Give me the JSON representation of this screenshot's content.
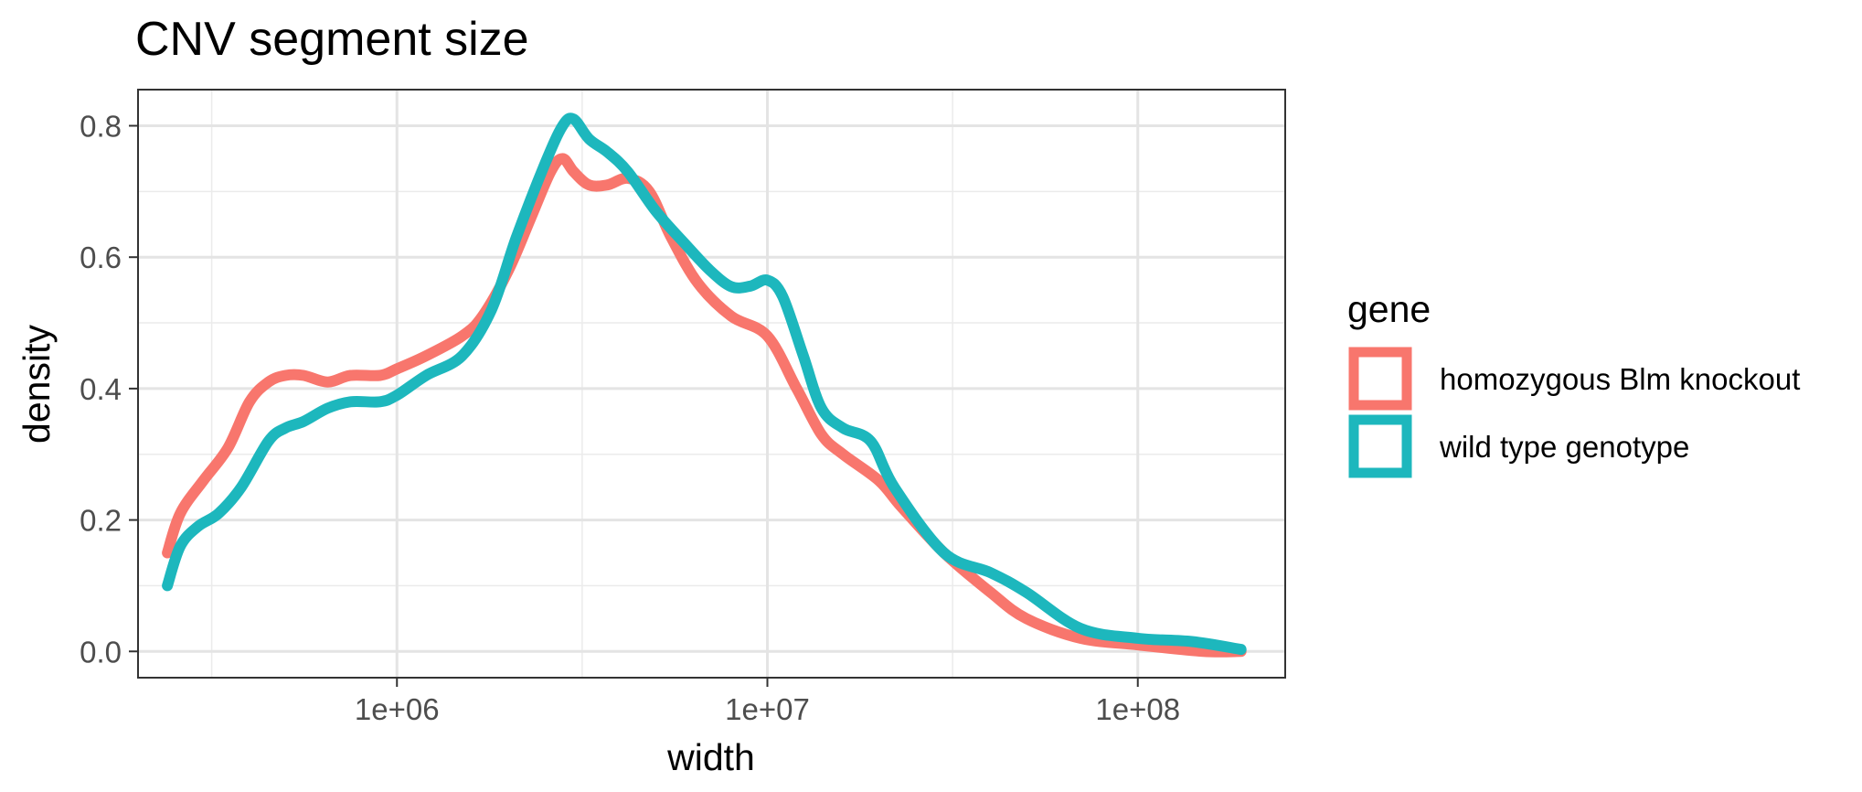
{
  "chart_data": {
    "type": "line",
    "title": "CNV segment size",
    "xlabel": "width",
    "ylabel": "density",
    "x_scale": "log10",
    "xlim": [
      200000,
      250000000
    ],
    "ylim": [
      -0.04,
      0.855
    ],
    "x_ticks": [
      {
        "value": 1000000,
        "label": "1e+06"
      },
      {
        "value": 10000000,
        "label": "1e+07"
      },
      {
        "value": 100000000,
        "label": "1e+08"
      }
    ],
    "y_ticks": [
      {
        "value": 0.0,
        "label": "0.0"
      },
      {
        "value": 0.2,
        "label": "0.2"
      },
      {
        "value": 0.4,
        "label": "0.4"
      },
      {
        "value": 0.6,
        "label": "0.6"
      },
      {
        "value": 0.8,
        "label": "0.8"
      }
    ],
    "grid": true,
    "legend": {
      "title": "gene",
      "position": "right"
    },
    "series": [
      {
        "name": "homozygous Blm knockout",
        "color": "#F8766D",
        "x": [
          240000,
          260000,
          300000,
          350000,
          400000,
          450000,
          500000,
          560000,
          650000,
          750000,
          900000,
          1000000,
          1200000,
          1500000,
          1700000,
          2000000,
          2300000,
          2600000,
          2800000,
          3000000,
          3300000,
          3700000,
          4200000,
          4800000,
          5500000,
          6500000,
          8000000,
          10000000,
          12000000,
          14000000,
          16000000,
          20000000,
          23000000,
          30000000,
          40000000,
          50000000,
          70000000,
          100000000,
          150000000,
          190000000
        ],
        "y": [
          0.15,
          0.21,
          0.26,
          0.31,
          0.38,
          0.41,
          0.42,
          0.42,
          0.41,
          0.42,
          0.42,
          0.43,
          0.45,
          0.48,
          0.51,
          0.58,
          0.66,
          0.73,
          0.75,
          0.73,
          0.71,
          0.71,
          0.72,
          0.7,
          0.63,
          0.56,
          0.51,
          0.48,
          0.4,
          0.33,
          0.3,
          0.26,
          0.22,
          0.15,
          0.09,
          0.05,
          0.02,
          0.01,
          0.0,
          0.0
        ]
      },
      {
        "name": "wild type genotype",
        "color": "#1DB7BD",
        "x": [
          240000,
          260000,
          290000,
          330000,
          380000,
          450000,
          500000,
          560000,
          650000,
          750000,
          900000,
          1000000,
          1200000,
          1500000,
          1800000,
          2100000,
          2500000,
          2800000,
          3000000,
          3300000,
          3700000,
          4200000,
          5000000,
          6000000,
          7000000,
          8000000,
          9000000,
          10000000,
          11000000,
          12500000,
          14000000,
          16000000,
          19000000,
          22000000,
          30000000,
          40000000,
          50000000,
          70000000,
          100000000,
          140000000,
          190000000
        ],
        "y": [
          0.1,
          0.16,
          0.19,
          0.21,
          0.25,
          0.32,
          0.34,
          0.35,
          0.37,
          0.38,
          0.38,
          0.39,
          0.42,
          0.45,
          0.52,
          0.63,
          0.74,
          0.8,
          0.81,
          0.78,
          0.76,
          0.73,
          0.67,
          0.62,
          0.58,
          0.555,
          0.556,
          0.565,
          0.54,
          0.45,
          0.37,
          0.34,
          0.32,
          0.25,
          0.15,
          0.12,
          0.09,
          0.035,
          0.02,
          0.015,
          0.003
        ]
      }
    ]
  }
}
